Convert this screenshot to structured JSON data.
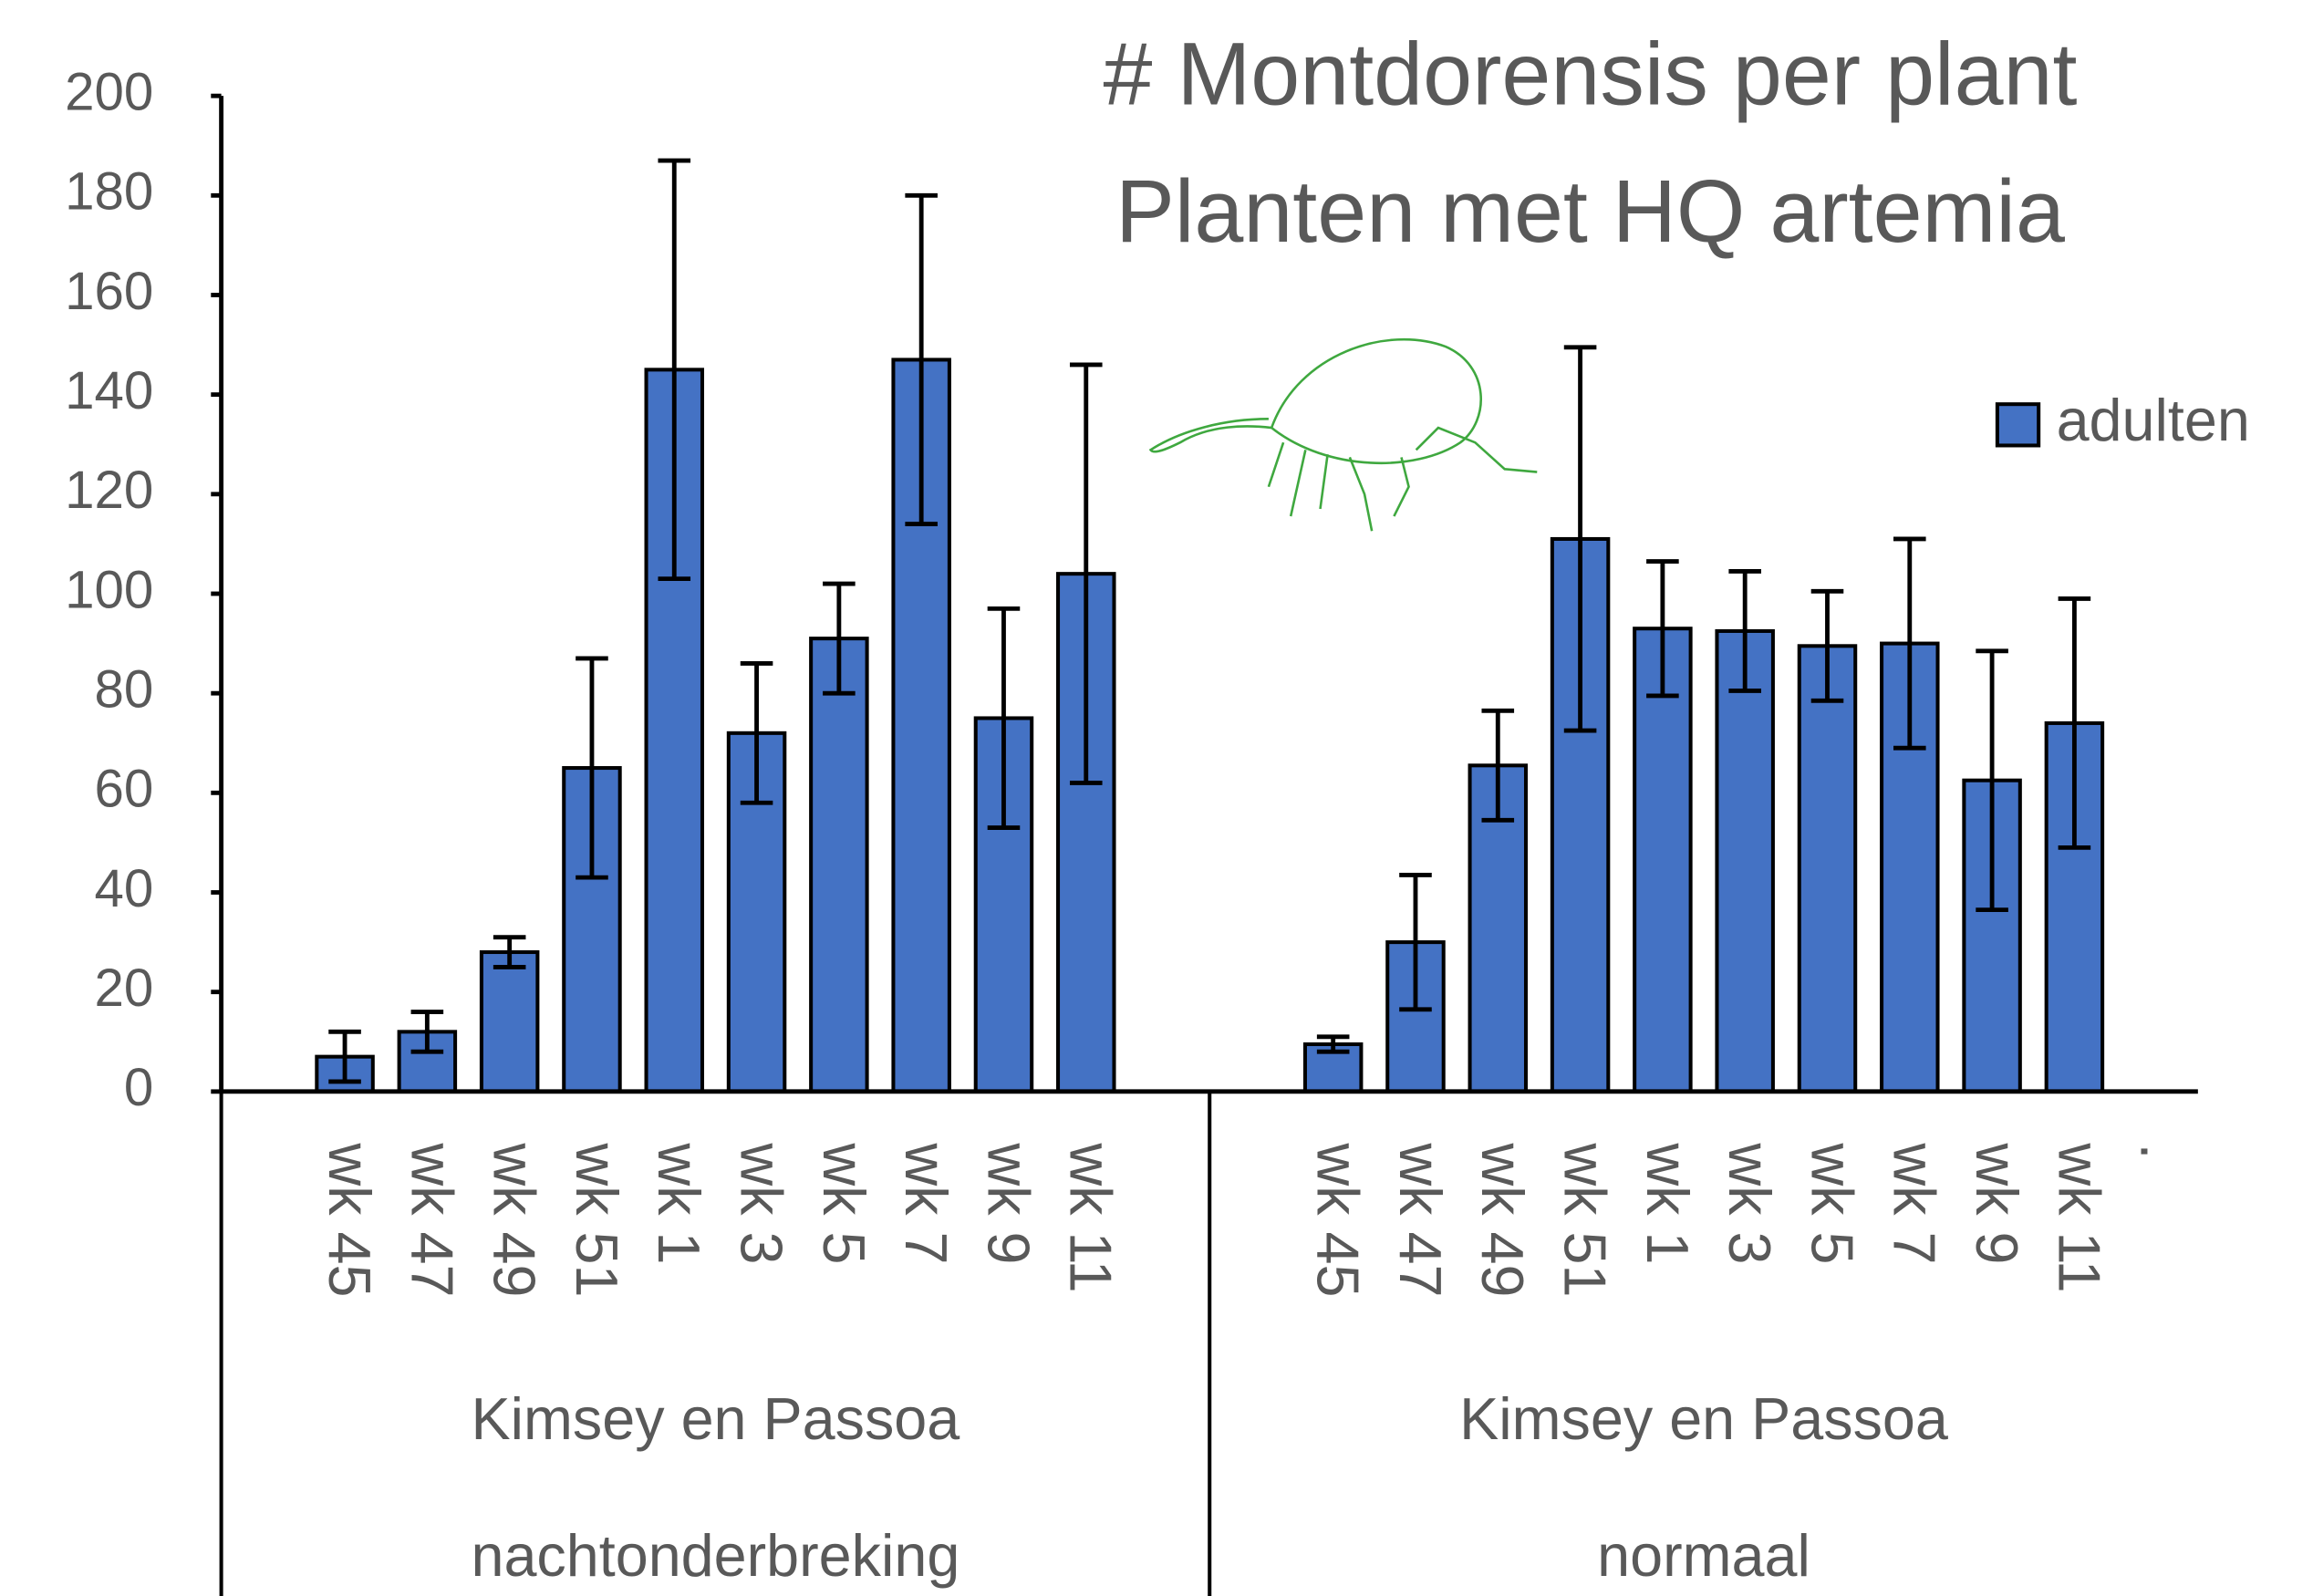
{
  "chart_data": {
    "type": "bar",
    "title": "# Montdorensis per plant",
    "subtitle": "Planten met HQ artemia",
    "groups": [
      {
        "name": "Kimsey en Passoa",
        "subgroup": "nachtonderbreking",
        "categories": [
          null,
          "wk 45",
          "wk 47",
          "wk 49",
          "wk 51",
          "wk 1",
          "wk 3",
          "wk 5",
          "wk 7",
          "wk 9",
          "wk 11",
          null
        ]
      },
      {
        "name": "Kimsey en Passoa",
        "subgroup": "normaal",
        "categories": [
          null,
          "wk 45",
          "wk 47",
          "wk 49",
          "wk 51",
          "wk 1",
          "wk 3",
          "wk 5",
          "wk 7",
          "wk 9",
          "wk 11",
          "."
        ]
      }
    ],
    "series": [
      {
        "name": "adulten",
        "color": "#4472c4",
        "values": [
          null,
          7,
          12,
          28,
          65,
          145,
          72,
          91,
          147,
          75,
          104,
          null,
          null,
          9.5,
          30,
          65.5,
          111,
          93,
          92.5,
          89.5,
          90,
          62.5,
          74,
          null
        ],
        "errors": [
          null,
          5,
          4,
          3,
          22,
          42,
          14,
          11,
          33,
          22,
          42,
          null,
          null,
          1.5,
          13.5,
          11,
          38.5,
          13.5,
          12,
          11,
          21,
          26,
          25,
          null
        ]
      }
    ],
    "ylim": [
      0,
      200
    ],
    "yticks": [
      0,
      20,
      40,
      60,
      80,
      100,
      120,
      140,
      160,
      180,
      200
    ],
    "legend": "right"
  }
}
